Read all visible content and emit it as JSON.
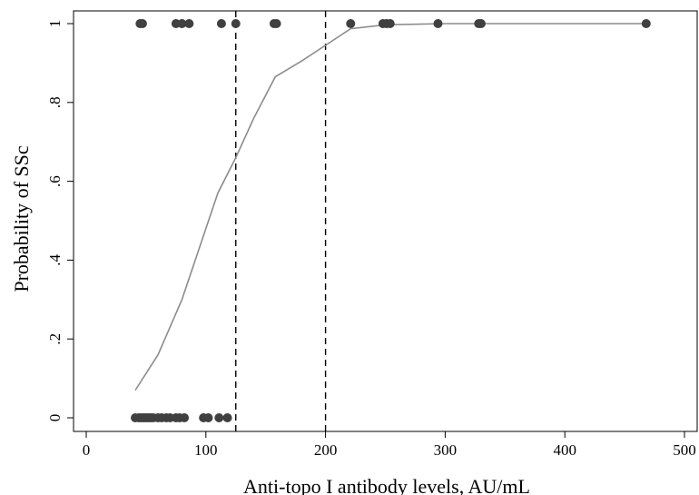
{
  "chart_data": {
    "type": "scatter",
    "title": "",
    "xlabel": "Anti-topo I antibody levels, AU/mL",
    "ylabel": "Probability of SSc",
    "xlim": [
      0,
      500
    ],
    "ylim": [
      0,
      1
    ],
    "x_ticks": [
      0,
      100,
      200,
      300,
      400,
      500
    ],
    "x_tick_labels": [
      "0",
      "100",
      "200",
      "300",
      "400",
      "500"
    ],
    "y_ticks": [
      0,
      0.2,
      0.4,
      0.6,
      0.8,
      1
    ],
    "y_tick_labels": [
      "0",
      ".2",
      ".4",
      ".6",
      ".8",
      "1"
    ],
    "grid": false,
    "reference_lines_x": [
      125,
      200
    ],
    "series": [
      {
        "kind": "points",
        "color": "#404040",
        "x": [
          41,
          44,
          46,
          48,
          50,
          52,
          54,
          56,
          60,
          63,
          67,
          70,
          75,
          78,
          82,
          98,
          102,
          111,
          118,
          45,
          47,
          75,
          80,
          86,
          113,
          125,
          157,
          159,
          221,
          248,
          251,
          254,
          294,
          328,
          330,
          468
        ],
        "y": [
          0,
          0,
          0,
          0,
          0,
          0,
          0,
          0,
          0,
          0,
          0,
          0,
          0,
          0,
          0,
          0,
          0,
          0,
          0,
          1,
          1,
          1,
          1,
          1,
          1,
          1,
          1,
          1,
          1,
          1,
          1,
          1,
          1,
          1,
          1,
          1
        ]
      },
      {
        "kind": "line",
        "color": "#8c8c8c",
        "x": [
          41,
          60,
          80,
          100,
          110,
          125,
          140,
          158,
          180,
          200,
          221,
          250,
          300,
          350,
          400,
          468
        ],
        "y": [
          0.07,
          0.16,
          0.3,
          0.48,
          0.57,
          0.66,
          0.76,
          0.865,
          0.905,
          0.945,
          0.987,
          0.997,
          1.0,
          1.0,
          1.0,
          1.0
        ]
      }
    ]
  }
}
